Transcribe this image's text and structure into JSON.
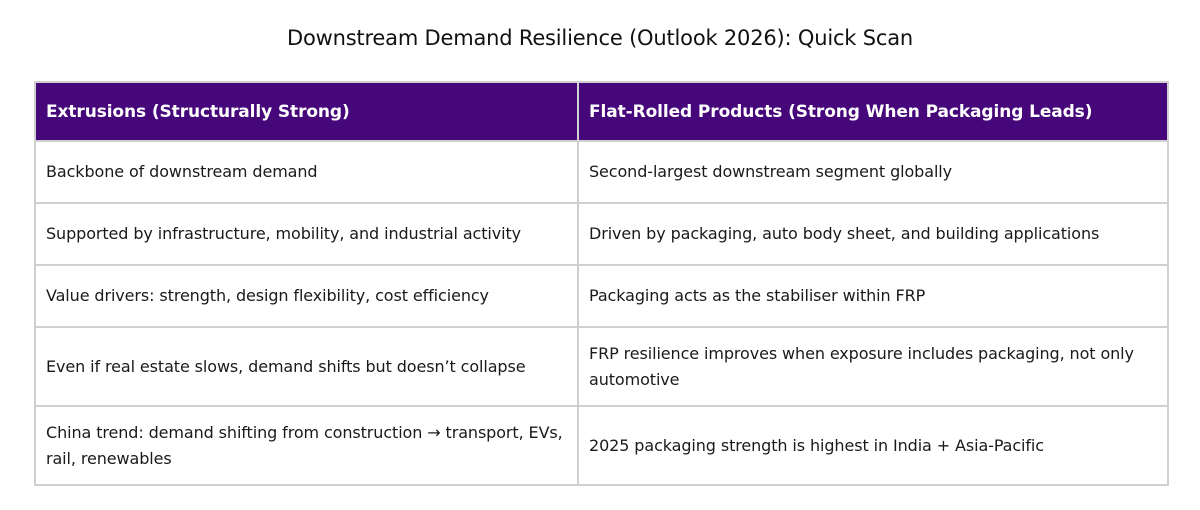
{
  "title": "Downstream Demand Resilience (Outlook 2026): Quick Scan",
  "colors": {
    "header_bg": "#46077a",
    "header_text": "#ffffff",
    "border": "#d0d0d0"
  },
  "table": {
    "headers": [
      "Extrusions (Structurally Strong)",
      "Flat-Rolled Products (Strong When Packaging Leads)"
    ],
    "rows": [
      [
        "Backbone of downstream demand",
        "Second-largest downstream segment globally"
      ],
      [
        "Supported by infrastructure, mobility, and industrial activity",
        "Driven by packaging, auto body sheet, and building applications"
      ],
      [
        "Value drivers: strength, design flexibility, cost efficiency",
        "Packaging acts as the stabiliser within FRP"
      ],
      [
        "Even if real estate slows, demand shifts but doesn’t collapse",
        "FRP resilience improves when exposure includes packaging, not only automotive"
      ],
      [
        "China trend: demand shifting from construction → transport, EVs, rail, renewables",
        "2025 packaging strength is highest in India + Asia-Pacific"
      ]
    ]
  }
}
